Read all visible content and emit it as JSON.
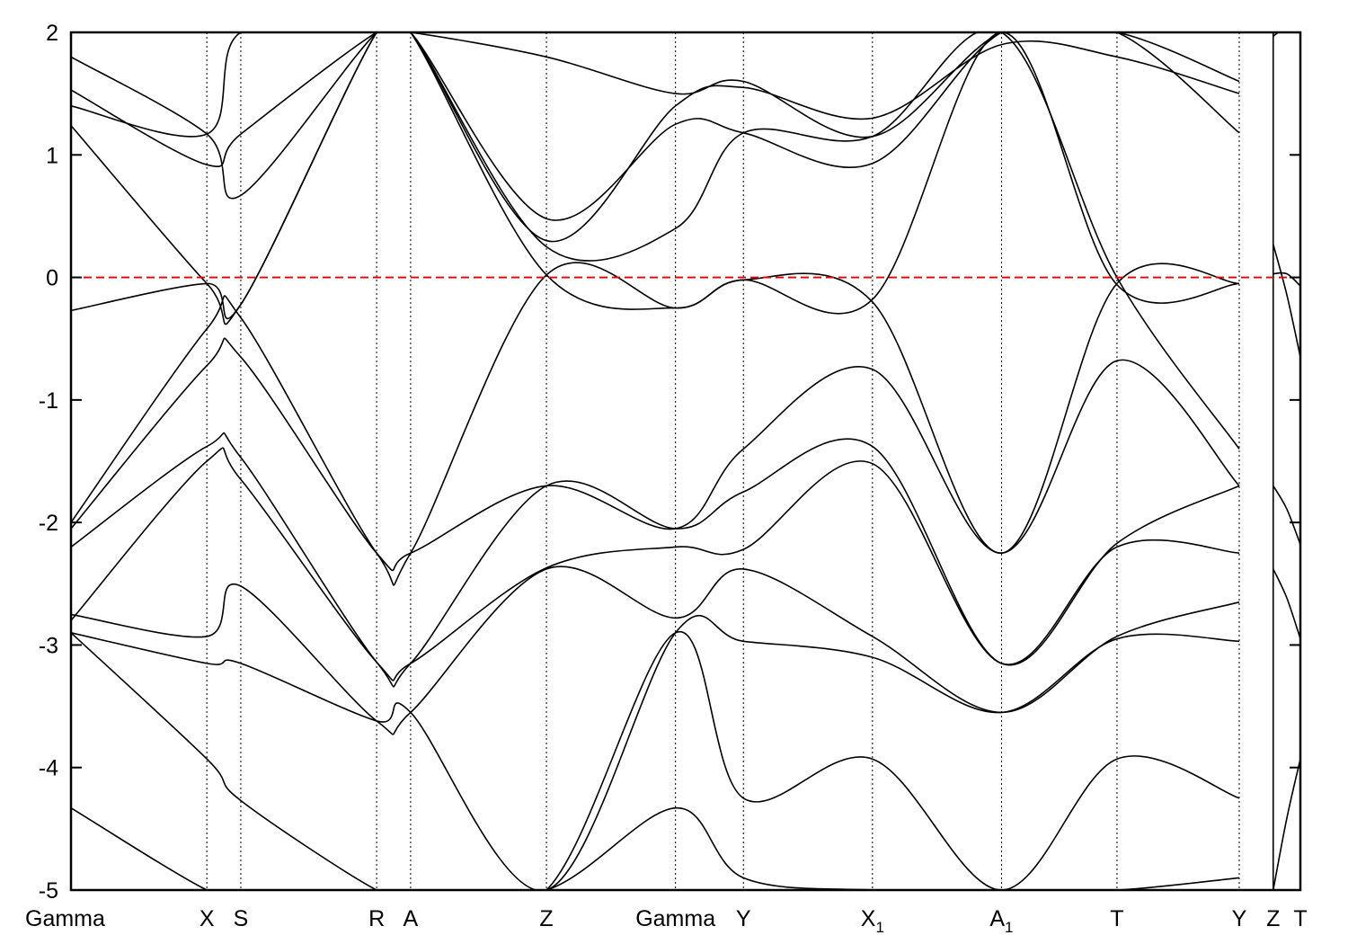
{
  "chart_data": {
    "type": "line",
    "title": "",
    "xlabel": "",
    "ylabel": "",
    "ylim": [
      -5,
      2
    ],
    "yticks": [
      -5,
      -4,
      -3,
      -2,
      -1,
      0,
      1,
      2
    ],
    "grid": false,
    "kpoint_positions": [
      0,
      1.0,
      1.25,
      2.25,
      2.5,
      3.5,
      4.45,
      4.95,
      5.9,
      6.85,
      7.7,
      8.6,
      8.85,
      9.05
    ],
    "kpoint_labels": [
      {
        "text": "Gamma",
        "sub": ""
      },
      {
        "text": "X",
        "sub": ""
      },
      {
        "text": "S",
        "sub": ""
      },
      {
        "text": "R",
        "sub": ""
      },
      {
        "text": "A",
        "sub": ""
      },
      {
        "text": "Z",
        "sub": ""
      },
      {
        "text": "Gamma",
        "sub": ""
      },
      {
        "text": "Y",
        "sub": ""
      },
      {
        "text": "X",
        "sub": "1"
      },
      {
        "text": "A",
        "sub": "1"
      },
      {
        "text": "T",
        "sub": ""
      },
      {
        "text": "Y",
        "sub": ""
      },
      {
        "text": "Z",
        "sub": ""
      },
      {
        "text": "T",
        "sub": ""
      }
    ],
    "segment_break_index": 11,
    "fermi_level": 0,
    "fermi_color": "#e00000",
    "line_color": "#000000",
    "series": [
      {
        "values": [
          1.8,
          1.17,
          0.67,
          2.0,
          2.0,
          1.8,
          1.5,
          1.6,
          1.15,
          2.0,
          2.0,
          1.6
        ]
      },
      {
        "values": [
          1.53,
          0.92,
          1.17,
          2.0,
          2.0,
          0.3,
          1.4,
          1.55,
          1.3,
          1.9,
          1.8,
          1.5
        ]
      },
      {
        "values": [
          1.4,
          1.17,
          2.0,
          2.0,
          2.0,
          0.48,
          1.25,
          1.18,
          0.93,
          2.0,
          2.0,
          1.18
        ]
      },
      {
        "values": [
          1.24,
          -0.05,
          -0.22,
          2.0,
          2.0,
          0.25,
          0.4,
          1.18,
          1.15,
          2.0,
          0.0,
          -1.4
        ]
      },
      {
        "values": [
          -0.27,
          -0.05,
          -0.22,
          2.0,
          2.0,
          0.02,
          -0.25,
          -0.02,
          -0.18,
          2.0,
          -0.06,
          -0.05
        ]
      },
      {
        "values": [
          -2.0,
          -0.42,
          -0.33,
          -2.25,
          -2.25,
          0.02,
          -0.25,
          -0.02,
          -0.2,
          -2.25,
          -0.05,
          -0.05
        ]
      },
      {
        "values": [
          -2.05,
          -0.72,
          -0.65,
          -2.25,
          -2.25,
          -1.7,
          -2.05,
          -1.4,
          -0.75,
          -2.25,
          -0.68,
          -1.7
        ]
      },
      {
        "values": [
          -2.2,
          -1.38,
          -1.47,
          -3.14,
          -3.15,
          -1.7,
          -2.05,
          -1.75,
          -1.38,
          -3.15,
          -2.17,
          -1.7
        ]
      },
      {
        "values": [
          -2.8,
          -1.5,
          -1.65,
          -3.14,
          -3.15,
          -2.37,
          -2.2,
          -2.22,
          -1.52,
          -3.15,
          -2.2,
          -2.25
        ]
      },
      {
        "values": [
          -2.75,
          -2.93,
          -2.52,
          -3.62,
          -3.55,
          -2.38,
          -2.78,
          -2.38,
          -2.93,
          -3.55,
          -2.93,
          -2.65
        ]
      },
      {
        "values": [
          -2.9,
          -3.15,
          -3.15,
          -3.62,
          -3.55,
          -5.0,
          -2.9,
          -2.97,
          -3.1,
          -3.55,
          -2.95,
          -2.97
        ]
      },
      {
        "values": [
          -2.9,
          -3.93,
          -4.27,
          -5.0,
          -5.0,
          -5.0,
          -2.9,
          -4.25,
          -3.93,
          -5.0,
          -3.93,
          -4.25
        ]
      },
      {
        "values": [
          -4.33,
          -5.0,
          -5.0,
          -5.0,
          -5.0,
          -5.0,
          -4.33,
          -4.9,
          -5.0,
          -5.0,
          -5.0,
          -4.9
        ]
      }
    ],
    "tail_series": [
      {
        "values": [
          1.97,
          2.0
        ]
      },
      {
        "values": [
          0.27,
          -0.65
        ]
      },
      {
        "values": [
          0.03,
          -0.07
        ]
      },
      {
        "values": [
          -1.7,
          -2.18
        ]
      },
      {
        "values": [
          -2.38,
          -2.95
        ]
      },
      {
        "values": [
          -5.0,
          -3.93
        ]
      }
    ]
  }
}
